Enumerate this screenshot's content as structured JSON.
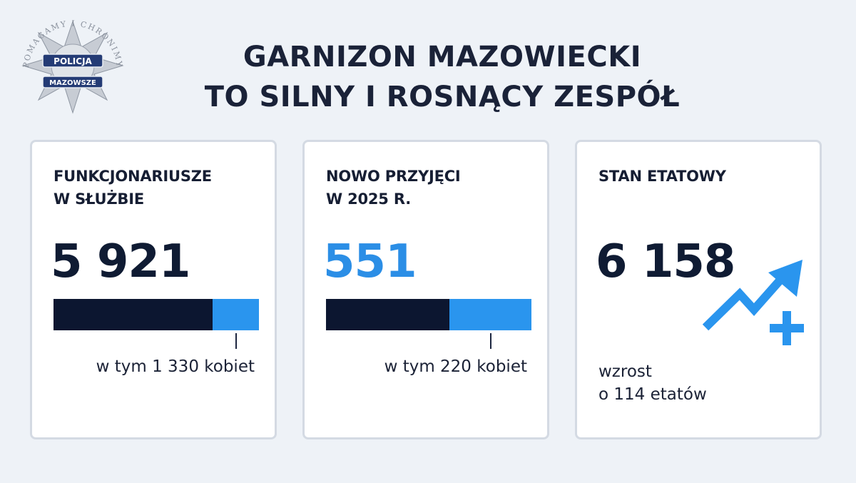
{
  "header": {
    "title_line1": "GARNIZON MAZOWIECKI",
    "title_line2": "TO SILNY I ROSNĄCY ZESPÓŁ"
  },
  "logo": {
    "ring_text": "POMAGAMY I CHRONIMY",
    "badge_top": "POLICJA",
    "badge_bottom": "MAZOWSZE",
    "icon": "police-star-badge-icon"
  },
  "cards": [
    {
      "title_line1": "FUNKCJONARIUSZE",
      "title_line2": "W SŁUŻBIE",
      "value": "5 921",
      "women_fraction": 0.2246,
      "note": "w tym 1 330 kobiet"
    },
    {
      "title_line1": "NOWO PRZYJĘCI",
      "title_line2": "W 2025 R.",
      "value": "551",
      "women_fraction": 0.3993,
      "note": "w tym 220 kobiet"
    },
    {
      "title_line1": "STAN ETATOWY",
      "value": "6 158",
      "growth_line1": "wzrost",
      "growth_line2": "o 114 etatów",
      "icon": "trend-up-arrow-plus-icon"
    }
  ],
  "colors": {
    "dark_navy": "#0c1630",
    "accent_blue": "#2a95ee",
    "background": "#eef2f7"
  }
}
